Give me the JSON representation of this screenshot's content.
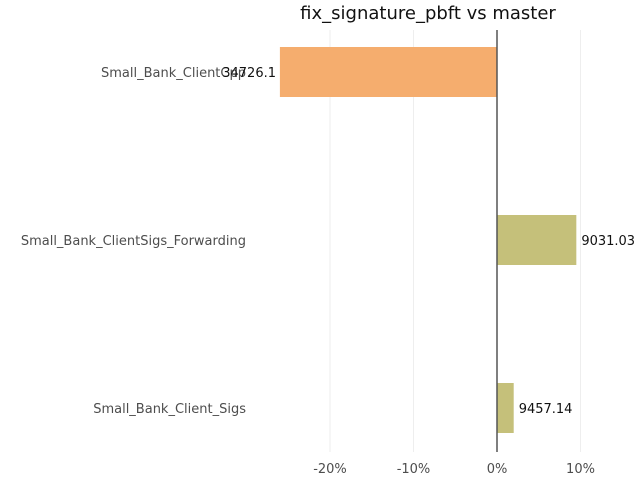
{
  "chart_data": {
    "type": "bar",
    "orientation": "horizontal",
    "title": "fix_signature_pbft vs master",
    "xlabel": "",
    "ylabel": "",
    "categories": [
      "Small_Bank_ClientCpp",
      "Small_Bank_ClientSigs_Forwarding",
      "Small_Bank_Client_Sigs"
    ],
    "values": [
      -26,
      9.5,
      2
    ],
    "data_labels": [
      "34726.1",
      "9031.03",
      "9457.14"
    ],
    "bar_colors": [
      "#f5ad6e",
      "#c5c07a",
      "#c5c07a"
    ],
    "xlim": [
      -30,
      12
    ],
    "x_ticks": [
      -20,
      -10,
      0,
      10
    ],
    "x_tick_labels": [
      "-20%",
      "-10%",
      "0%",
      "10%"
    ],
    "grid": true,
    "legend": "none"
  }
}
